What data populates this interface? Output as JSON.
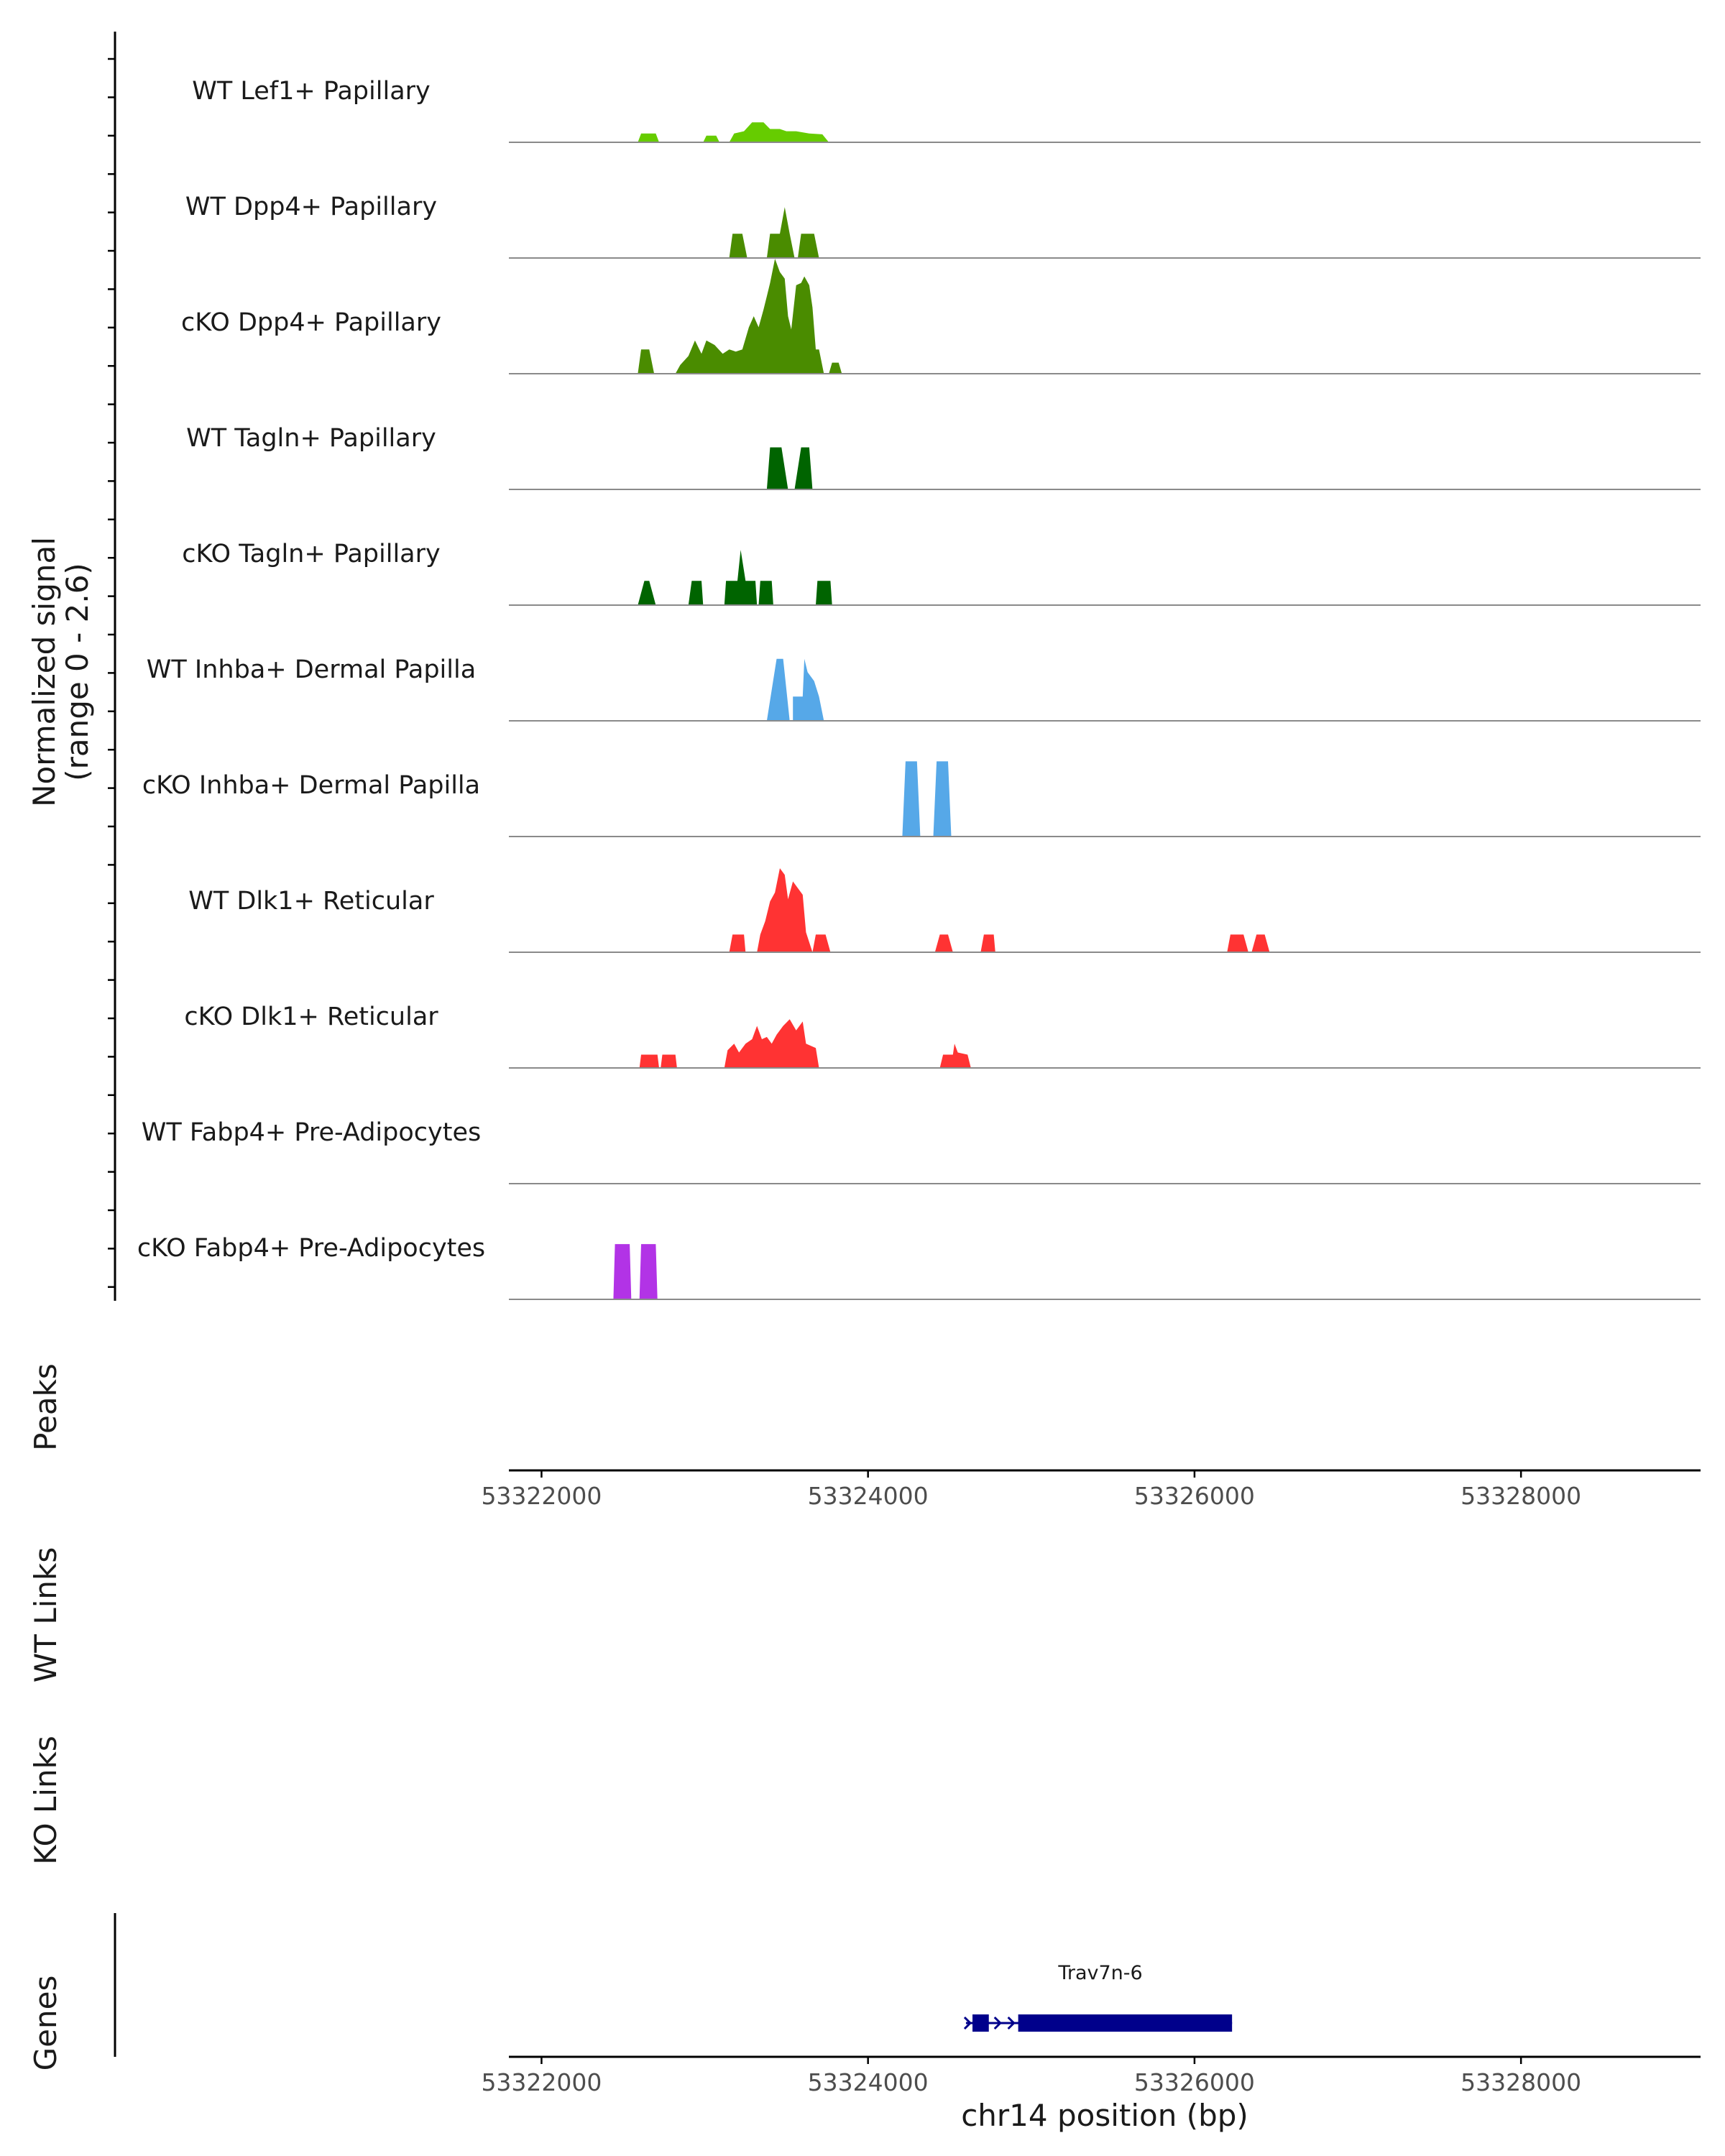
{
  "chart_data": {
    "type": "area",
    "title": "",
    "chromosome": "chr14",
    "xlim": [
      53321800,
      53329100
    ],
    "xlabel": "chr14 position (bp)",
    "x_ticks": [
      {
        "value": 53322000,
        "label": "53322000"
      },
      {
        "value": 53324000,
        "label": "53324000"
      },
      {
        "value": 53326000,
        "label": "53326000"
      },
      {
        "value": 53328000,
        "label": "53328000"
      }
    ],
    "ylabel_line1": "Normalized signal",
    "ylabel_line2": "(range 0 - 2.6)",
    "ylim": [
      0,
      2.6
    ],
    "panel_labels": {
      "peaks": "Peaks",
      "wt_links": "WT Links",
      "ko_links": "KO Links",
      "genes": "Genes"
    },
    "series": [
      {
        "name": "WT Lef1+ Papillary",
        "color": "#66cc00",
        "points": [
          [
            53322590,
            0
          ],
          [
            53322610,
            0.2
          ],
          [
            53322700,
            0.2
          ],
          [
            53322720,
            0
          ],
          [
            53322990,
            0
          ],
          [
            53323010,
            0.15
          ],
          [
            53323070,
            0.15
          ],
          [
            53323090,
            0
          ],
          [
            53323150,
            0
          ],
          [
            53323180,
            0.2
          ],
          [
            53323240,
            0.25
          ],
          [
            53323290,
            0.45
          ],
          [
            53323360,
            0.45
          ],
          [
            53323400,
            0.3
          ],
          [
            53323460,
            0.3
          ],
          [
            53323500,
            0.25
          ],
          [
            53323560,
            0.25
          ],
          [
            53323640,
            0.2
          ],
          [
            53323720,
            0.18
          ],
          [
            53323760,
            0
          ]
        ]
      },
      {
        "name": "WT Dpp4+ Papillary",
        "color": "#4a8c00",
        "points": [
          [
            53323150,
            0
          ],
          [
            53323170,
            0.55
          ],
          [
            53323230,
            0.55
          ],
          [
            53323260,
            0
          ],
          [
            53323380,
            0
          ],
          [
            53323400,
            0.55
          ],
          [
            53323460,
            0.55
          ],
          [
            53323490,
            1.15
          ],
          [
            53323520,
            0.55
          ],
          [
            53323550,
            0
          ],
          [
            53323570,
            0
          ],
          [
            53323590,
            0.55
          ],
          [
            53323670,
            0.55
          ],
          [
            53323700,
            0
          ]
        ]
      },
      {
        "name": "cKO Dpp4+ Papillary",
        "color": "#4a8c00",
        "points": [
          [
            53322590,
            0
          ],
          [
            53322610,
            0.55
          ],
          [
            53322660,
            0.55
          ],
          [
            53322690,
            0
          ],
          [
            53322820,
            0
          ],
          [
            53322850,
            0.2
          ],
          [
            53322900,
            0.4
          ],
          [
            53322940,
            0.75
          ],
          [
            53322980,
            0.45
          ],
          [
            53323010,
            0.75
          ],
          [
            53323060,
            0.65
          ],
          [
            53323110,
            0.45
          ],
          [
            53323150,
            0.55
          ],
          [
            53323190,
            0.5
          ],
          [
            53323230,
            0.55
          ],
          [
            53323270,
            1.05
          ],
          [
            53323300,
            1.3
          ],
          [
            53323330,
            1.05
          ],
          [
            53323360,
            1.45
          ],
          [
            53323380,
            1.75
          ],
          [
            53323400,
            2.05
          ],
          [
            53323430,
            2.6
          ],
          [
            53323460,
            2.3
          ],
          [
            53323490,
            2.15
          ],
          [
            53323510,
            1.3
          ],
          [
            53323530,
            1.0
          ],
          [
            53323560,
            2.0
          ],
          [
            53323590,
            2.05
          ],
          [
            53323610,
            2.2
          ],
          [
            53323640,
            2.0
          ],
          [
            53323660,
            1.5
          ],
          [
            53323680,
            0.55
          ],
          [
            53323700,
            0.55
          ],
          [
            53323730,
            0
          ],
          [
            53323760,
            0
          ],
          [
            53323780,
            0.25
          ],
          [
            53323820,
            0.25
          ],
          [
            53323840,
            0
          ]
        ]
      },
      {
        "name": "WT Tagln+ Papillary",
        "color": "#006400",
        "points": [
          [
            53323380,
            0
          ],
          [
            53323400,
            0.95
          ],
          [
            53323470,
            0.95
          ],
          [
            53323510,
            0
          ],
          [
            53323550,
            0
          ],
          [
            53323590,
            0.95
          ],
          [
            53323640,
            0.95
          ],
          [
            53323660,
            0
          ]
        ]
      },
      {
        "name": "cKO Tagln+ Papillary",
        "color": "#006400",
        "points": [
          [
            53322590,
            0
          ],
          [
            53322630,
            0.55
          ],
          [
            53322660,
            0.55
          ],
          [
            53322700,
            0
          ],
          [
            53322900,
            0
          ],
          [
            53322920,
            0.55
          ],
          [
            53322980,
            0.55
          ],
          [
            53322990,
            0
          ],
          [
            53323120,
            0
          ],
          [
            53323130,
            0.55
          ],
          [
            53323200,
            0.55
          ],
          [
            53323220,
            1.25
          ],
          [
            53323250,
            0.55
          ],
          [
            53323310,
            0.55
          ],
          [
            53323320,
            0
          ],
          [
            53323330,
            0
          ],
          [
            53323340,
            0.55
          ],
          [
            53323410,
            0.55
          ],
          [
            53323420,
            0
          ],
          [
            53323680,
            0
          ],
          [
            53323690,
            0.55
          ],
          [
            53323770,
            0.55
          ],
          [
            53323780,
            0
          ]
        ]
      },
      {
        "name": "WT Inhba+ Dermal Papilla",
        "color": "#56a8e8",
        "points": [
          [
            53323380,
            0
          ],
          [
            53323440,
            1.4
          ],
          [
            53323480,
            1.4
          ],
          [
            53323520,
            0
          ],
          [
            53323540,
            0
          ],
          [
            53323540,
            0.55
          ],
          [
            53323600,
            0.55
          ],
          [
            53323610,
            1.4
          ],
          [
            53323630,
            1.1
          ],
          [
            53323670,
            0.9
          ],
          [
            53323700,
            0.55
          ],
          [
            53323730,
            0
          ]
        ]
      },
      {
        "name": "cKO Inhba+ Dermal Papilla",
        "color": "#56a8e8",
        "points": [
          [
            53324210,
            0
          ],
          [
            53324230,
            1.7
          ],
          [
            53324300,
            1.7
          ],
          [
            53324320,
            0
          ],
          [
            53324400,
            0
          ],
          [
            53324420,
            1.7
          ],
          [
            53324490,
            1.7
          ],
          [
            53324510,
            0
          ]
        ]
      },
      {
        "name": "WT Dlk1+ Reticular",
        "color": "#ff3333",
        "points": [
          [
            53323150,
            0
          ],
          [
            53323170,
            0.4
          ],
          [
            53323240,
            0.4
          ],
          [
            53323250,
            0
          ],
          [
            53323320,
            0
          ],
          [
            53323340,
            0.4
          ],
          [
            53323370,
            0.7
          ],
          [
            53323400,
            1.15
          ],
          [
            53323430,
            1.35
          ],
          [
            53323460,
            1.9
          ],
          [
            53323490,
            1.75
          ],
          [
            53323510,
            1.2
          ],
          [
            53323540,
            1.6
          ],
          [
            53323570,
            1.45
          ],
          [
            53323600,
            1.3
          ],
          [
            53323620,
            0.45
          ],
          [
            53323660,
            0
          ],
          [
            53323680,
            0.4
          ],
          [
            53323740,
            0.4
          ],
          [
            53323770,
            0
          ],
          [
            53324410,
            0
          ],
          [
            53324440,
            0.4
          ],
          [
            53324490,
            0.4
          ],
          [
            53324520,
            0
          ],
          [
            53324690,
            0
          ],
          [
            53324710,
            0.4
          ],
          [
            53324770,
            0.4
          ],
          [
            53324780,
            0
          ],
          [
            53326200,
            0
          ],
          [
            53326220,
            0.4
          ],
          [
            53326300,
            0.4
          ],
          [
            53326330,
            0
          ],
          [
            53326350,
            0
          ],
          [
            53326380,
            0.4
          ],
          [
            53326430,
            0.4
          ],
          [
            53326460,
            0
          ]
        ]
      },
      {
        "name": "cKO Dlk1+ Reticular",
        "color": "#ff3333",
        "points": [
          [
            53322600,
            0
          ],
          [
            53322610,
            0.3
          ],
          [
            53322710,
            0.3
          ],
          [
            53322720,
            0
          ],
          [
            53322730,
            0
          ],
          [
            53322740,
            0.3
          ],
          [
            53322820,
            0.3
          ],
          [
            53322830,
            0
          ],
          [
            53323120,
            0
          ],
          [
            53323140,
            0.4
          ],
          [
            53323180,
            0.55
          ],
          [
            53323210,
            0.35
          ],
          [
            53323250,
            0.55
          ],
          [
            53323290,
            0.65
          ],
          [
            53323320,
            0.95
          ],
          [
            53323350,
            0.65
          ],
          [
            53323380,
            0.7
          ],
          [
            53323410,
            0.55
          ],
          [
            53323440,
            0.75
          ],
          [
            53323480,
            0.95
          ],
          [
            53323520,
            1.1
          ],
          [
            53323560,
            0.85
          ],
          [
            53323600,
            1.05
          ],
          [
            53323620,
            0.55
          ],
          [
            53323680,
            0.45
          ],
          [
            53323700,
            0
          ],
          [
            53324440,
            0
          ],
          [
            53324460,
            0.3
          ],
          [
            53324520,
            0.3
          ],
          [
            53324530,
            0.55
          ],
          [
            53324550,
            0.35
          ],
          [
            53324610,
            0.3
          ],
          [
            53324630,
            0
          ]
        ]
      },
      {
        "name": "WT Fabp4+ Pre-Adipocytes",
        "color": "#b233e6",
        "points": []
      },
      {
        "name": "cKO Fabp4+ Pre-Adipocytes",
        "color": "#b233e6",
        "points": [
          [
            53322440,
            0
          ],
          [
            53322450,
            1.25
          ],
          [
            53322540,
            1.25
          ],
          [
            53322550,
            0
          ],
          [
            53322600,
            0
          ],
          [
            53322610,
            1.25
          ],
          [
            53322700,
            1.25
          ],
          [
            53322710,
            0
          ]
        ]
      }
    ],
    "genes": [
      {
        "name": "Trav7n-6",
        "start": 53324600,
        "end": 53326230,
        "strand": "+",
        "exons": [
          [
            53324640,
            53324740
          ],
          [
            53324920,
            53326230
          ]
        ]
      }
    ]
  }
}
